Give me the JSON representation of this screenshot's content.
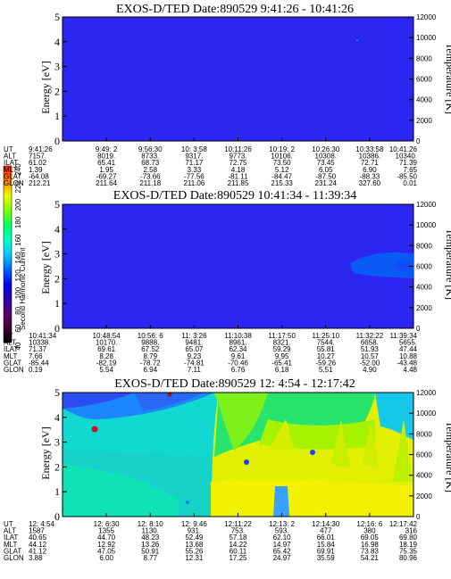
{
  "colors": {
    "background": "#ffffff",
    "panel_top_fill": "#2b26f2",
    "panel_mid_fill": "#2b26f2",
    "colorbar": [
      "#000000",
      "#3b0030",
      "#5a0066",
      "#2a00aa",
      "#0000e6",
      "#0060ff",
      "#00c8ff",
      "#00ffc8",
      "#00ff64",
      "#80ff00",
      "#e8ff00",
      "#ff9000",
      "#ff2000"
    ]
  },
  "colorbar": {
    "label": "Second Harmonic Current",
    "ticks": [
      "40",
      "60",
      "80",
      "100",
      "120",
      "140",
      "160",
      "180",
      "200",
      "220",
      "240"
    ]
  },
  "chart_data": [
    {
      "type": "heatmap",
      "title": "EXOS-D/TED   Date:890529  9:41:26 - 10:41:26",
      "ylabel": "Energy [eV]",
      "y2label": "Temperature [K]",
      "ylim": [
        0,
        5
      ],
      "y2lim": [
        0,
        12000
      ],
      "yticks": [
        "0",
        "1",
        "2",
        "3",
        "4",
        "5"
      ],
      "y2ticks": [
        "0",
        "2000",
        "4000",
        "6000",
        "8000",
        "10000",
        "12000"
      ],
      "fill": "uniform low value (~100)",
      "ephemeris_labels": [
        "UT",
        "ALT",
        "ILAT",
        "MLT",
        "GLAT",
        "GLON"
      ],
      "ephemeris": [
        [
          "9:41:26",
          "7157.",
          "61.02",
          "1.39",
          "-64.08",
          "212.21"
        ],
        [
          "9:49: 2",
          "8019.",
          "65.41",
          "1.95",
          "-69.27",
          "211.64"
        ],
        [
          "9:56:30",
          "8733.",
          "68.73",
          "2.58",
          "-73.66",
          "211.18"
        ],
        [
          "10: 3:58",
          "9317.",
          "71.17",
          "3.33",
          "-77.56",
          "211.06"
        ],
        [
          "10:11:26",
          "9773.",
          "72.75",
          "4.18",
          "-81.11",
          "211.85"
        ],
        [
          "10:19: 2",
          "10106.",
          "73.50",
          "5.12",
          "-84.47",
          "215.33"
        ],
        [
          "10:26:30",
          "10308.",
          "73.45",
          "6.05",
          "-87.50",
          "231.24"
        ],
        [
          "10:33:58",
          "10386.",
          "72.71",
          "6.90",
          "-88.33",
          "327.60"
        ],
        [
          "10:41:26",
          "10340.",
          "71.39",
          "7.65",
          "-85.50",
          "0.01"
        ]
      ]
    },
    {
      "type": "heatmap",
      "title": "EXOS-D/TED   Date:890529  10:41:34 - 11:39:34",
      "ylabel": "Energy [eV]",
      "y2label": "Temperature [K]",
      "ylim": [
        0,
        5
      ],
      "y2lim": [
        0,
        12000
      ],
      "yticks": [
        "0",
        "1",
        "2",
        "3",
        "4",
        "5"
      ],
      "y2ticks": [
        "0",
        "2000",
        "4000",
        "6000",
        "8000",
        "10000",
        "12000"
      ],
      "fill": "uniform low value (~100) with stronger patch near 11:30-11:39 at 2-3 eV",
      "ephemeris_labels": [
        "UT",
        "ALT",
        "ILAT",
        "MLT",
        "GLAT",
        "GLON"
      ],
      "ephemeris": [
        [
          "10:41:34",
          "10338.",
          "71.37",
          "7.66",
          "-85.44",
          "0.19"
        ],
        [
          "10:48:54",
          "10170.",
          "69.61",
          "8.28",
          "-82.19",
          "5.54"
        ],
        [
          "10:56: 6",
          "9888.",
          "67.52",
          "8.79",
          "-78.72",
          "6.94"
        ],
        [
          "11: 3:26",
          "9481.",
          "65.07",
          "9.23",
          "-74.81",
          "7.11"
        ],
        [
          "11:10:38",
          "8961.",
          "62.34",
          "9.61",
          "-70.46",
          "6.76"
        ],
        [
          "11:17:50",
          "8321.",
          "59.29",
          "9.95",
          "-65.41",
          "6.18"
        ],
        [
          "11:25:10",
          "7544.",
          "55.81",
          "10.27",
          "-59.26",
          "5.51"
        ],
        [
          "11:32:22",
          "6658.",
          "51.93",
          "10.57",
          "-52.00",
          "4.90"
        ],
        [
          "11:39:34",
          "5655.",
          "47.44",
          "10.88",
          "-43.48",
          "4.48"
        ]
      ]
    },
    {
      "type": "heatmap",
      "title": "EXOS-D/TED   Date:890529  12: 4:54 - 12:17:42",
      "ylabel": "Energy [eV]",
      "y2label": "Temperature [K]",
      "ylim": [
        0,
        5
      ],
      "y2lim": [
        0,
        12000
      ],
      "yticks": [
        "0",
        "1",
        "2",
        "3",
        "4",
        "5"
      ],
      "y2ticks": [
        "0",
        "2000",
        "4000",
        "6000",
        "8000",
        "10000",
        "12000"
      ],
      "fill": "values rising from ~140 (cyan, early) to ~200 (yellow, later) across energies",
      "ephemeris_labels": [
        "UT",
        "ALT",
        "ILAT",
        "MLT",
        "GLAT",
        "GLON"
      ],
      "ephemeris": [
        [
          "12: 4:54",
          "1587",
          "40.65",
          "44.12",
          "41.12",
          "3.88"
        ],
        [
          "12: 6:30",
          "1355",
          "44.70",
          "12.92",
          "47.05",
          "6.00"
        ],
        [
          "12: 8:10",
          "1130.",
          "48.23",
          "13.26",
          "50.91",
          "8.77"
        ],
        [
          "12: 9:46",
          "931.",
          "52.49",
          "13.68",
          "55.26",
          "12.31"
        ],
        [
          "12:11:22",
          "753.",
          "57.18",
          "14.22",
          "60.11",
          "17.25"
        ],
        [
          "12:13: 2",
          "593.",
          "62.10",
          "14.97",
          "65.42",
          "24.97"
        ],
        [
          "12:14:30",
          "477",
          "66.01",
          "15.84",
          "69.91",
          "35.59"
        ],
        [
          "12:16: 6",
          "380",
          "69.05",
          "16.98",
          "73.83",
          "54.21"
        ],
        [
          "12:17:42",
          "316",
          "69.80",
          "18.19",
          "75.35",
          "80.96"
        ]
      ]
    }
  ]
}
